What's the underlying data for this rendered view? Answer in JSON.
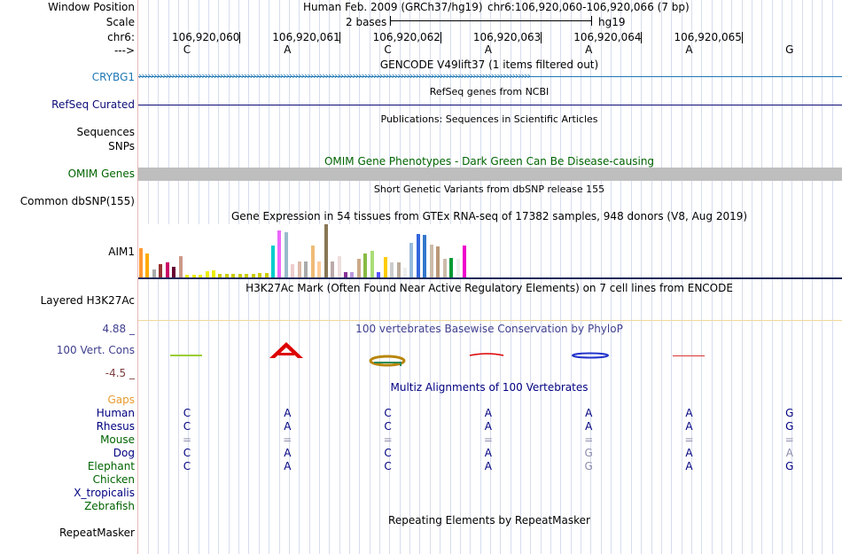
{
  "labels": {
    "window_position": "Window Position",
    "scale": "Scale",
    "chrom": "chr6:",
    "strand": "--->",
    "crybg1": "CRYBG1",
    "refseq": "RefSeq Curated",
    "sequences": "Sequences",
    "snps": "SNPs",
    "omim": "OMIM Genes",
    "dbsnp": "Common dbSNP(155)",
    "aim1": "AIM1",
    "h3k27ac": "Layered H3K27Ac",
    "cons_max": "4.88 _",
    "cons": "100 Vert. Cons",
    "cons_min": "-4.5 _",
    "gaps": "Gaps",
    "species": [
      {
        "name": "Human",
        "color": "#000080"
      },
      {
        "name": "Rhesus",
        "color": "#000080"
      },
      {
        "name": "Mouse",
        "color": "#006400"
      },
      {
        "name": "Dog",
        "color": "#000080"
      },
      {
        "name": "Elephant",
        "color": "#006400"
      },
      {
        "name": "Chicken",
        "color": "#006400"
      },
      {
        "name": "X_tropicalis",
        "color": "#000080"
      },
      {
        "name": "Zebrafish",
        "color": "#006400"
      }
    ],
    "repeatmasker": "RepeatMasker"
  },
  "header": {
    "assembly": "Human Feb. 2009 (GRCh37/hg19)",
    "position": "chr6:106,920,060-106,920,066 (7 bp)",
    "scale_text": "2 bases",
    "scale_assembly": "hg19",
    "coords": [
      "106,920,060",
      "106,920,061",
      "106,920,062",
      "106,920,063",
      "106,920,064",
      "106,920,065"
    ],
    "bases": [
      "C",
      "A",
      "C",
      "A",
      "A",
      "A",
      "G"
    ]
  },
  "tracks": {
    "gencode_title": "GENCODE V49lift37 (1 items filtered out)",
    "refseq_title": "RefSeq genes from NCBI",
    "publications_title": "Publications: Sequences in Scientific Articles",
    "omim_title": "OMIM Gene Phenotypes - Dark Green Can Be Disease-causing",
    "dbsnp_title": "Short Genetic Variants from dbSNP release 155",
    "gtex_title": "Gene Expression in 54 tissues from GTEx RNA-seq of 17382 samples, 948 donors (V8, Aug 2019)",
    "h3k27ac_title": "H3K27Ac Mark (Often Found Near Active Regulatory Elements) on 7 cell lines from ENCODE",
    "phylop_title": "100 vertebrates Basewise Conservation by PhyloP",
    "multiz_title": "Multiz Alignments of 100 Vertebrates",
    "repeat_title": "Repeating Elements by RepeatMasker"
  },
  "alignment": {
    "Human": [
      "C",
      "A",
      "C",
      "A",
      "A",
      "A",
      "G"
    ],
    "Rhesus": [
      "C",
      "A",
      "C",
      "A",
      "A",
      "A",
      "G"
    ],
    "Mouse": [
      "=",
      "=",
      "=",
      "=",
      "=",
      "=",
      "="
    ],
    "Dog": [
      "C",
      "A",
      "C",
      "A",
      "G",
      "A",
      "A"
    ],
    "Elephant": [
      "C",
      "A",
      "C",
      "A",
      "G",
      "A",
      "G"
    ]
  },
  "gtex_bars": [
    {
      "v": 0.55,
      "c": "#FF9933"
    },
    {
      "v": 0.45,
      "c": "#FFAA00"
    },
    {
      "v": 0.15,
      "c": "#AAAAAA"
    },
    {
      "v": 0.25,
      "c": "#993333"
    },
    {
      "v": 0.28,
      "c": "#CC0066"
    },
    {
      "v": 0.2,
      "c": "#660033"
    },
    {
      "v": 0.4,
      "c": "#CC9988"
    },
    {
      "v": 0.05,
      "c": "#EEEE00"
    },
    {
      "v": 0.05,
      "c": "#EEEE00"
    },
    {
      "v": 0.05,
      "c": "#EEEE00"
    },
    {
      "v": 0.12,
      "c": "#EEEE00"
    },
    {
      "v": 0.14,
      "c": "#EEEE00"
    },
    {
      "v": 0.06,
      "c": "#CCCC00"
    },
    {
      "v": 0.07,
      "c": "#CCCC00"
    },
    {
      "v": 0.06,
      "c": "#CCCC00"
    },
    {
      "v": 0.06,
      "c": "#CCCC00"
    },
    {
      "v": 0.07,
      "c": "#CCCC00"
    },
    {
      "v": 0.07,
      "c": "#CCCC00"
    },
    {
      "v": 0.09,
      "c": "#CCCC00"
    },
    {
      "v": 0.09,
      "c": "#CCCC00"
    },
    {
      "v": 0.6,
      "c": "#00CCCC"
    },
    {
      "v": 0.88,
      "c": "#EE66FF"
    },
    {
      "v": 0.85,
      "c": "#99BBCC"
    },
    {
      "v": 0.25,
      "c": "#EECCCC"
    },
    {
      "v": 0.3,
      "c": "#DDBBAA"
    },
    {
      "v": 0.3,
      "c": "#AAAAAA"
    },
    {
      "v": 0.6,
      "c": "#EEBB77"
    },
    {
      "v": 0.3,
      "c": "#FFCC99"
    },
    {
      "v": 1.0,
      "c": "#887755"
    },
    {
      "v": 0.3,
      "c": "#BBAAAA"
    },
    {
      "v": 0.4,
      "c": "#EEDDDD"
    },
    {
      "v": 0.1,
      "c": "#883399"
    },
    {
      "v": 0.1,
      "c": "#BB99DD"
    },
    {
      "v": 0.35,
      "c": "#CCAA88"
    },
    {
      "v": 0.45,
      "c": "#88BB44"
    },
    {
      "v": 0.5,
      "c": "#AADD77"
    },
    {
      "v": 0.1,
      "c": "#5555FF"
    },
    {
      "v": 0.38,
      "c": "#FFCC00"
    },
    {
      "v": 0.28,
      "c": "#CCCCCC"
    },
    {
      "v": 0.28,
      "c": "#BBAA99"
    },
    {
      "v": 0.18,
      "c": "#EEEEEE"
    },
    {
      "v": 0.65,
      "c": "#99BBDD"
    },
    {
      "v": 0.82,
      "c": "#3366DD"
    },
    {
      "v": 0.8,
      "c": "#3377CC"
    },
    {
      "v": 0.62,
      "c": "#CCBBAA"
    },
    {
      "v": 0.58,
      "c": "#BB9977"
    },
    {
      "v": 0.35,
      "c": "#CCBBAA"
    },
    {
      "v": 0.36,
      "c": "#009933"
    },
    {
      "v": 0.35,
      "c": "#EEEEEE"
    },
    {
      "v": 0.6,
      "c": "#EE00CC"
    }
  ]
}
